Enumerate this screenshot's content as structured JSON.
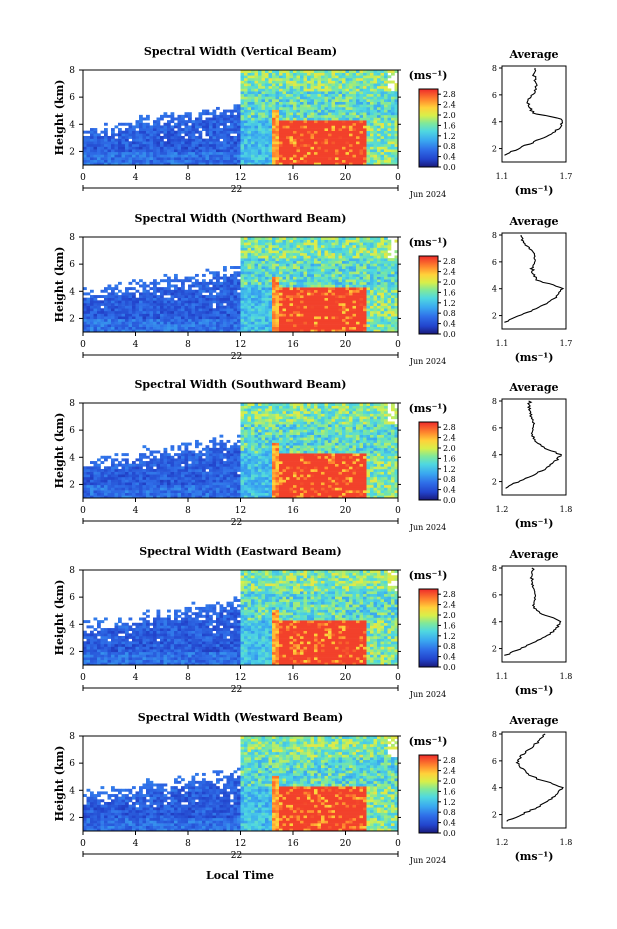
{
  "figure": {
    "xlabel": "Local Time",
    "date": "Jun 2024",
    "day": "22",
    "height_label": "Height (km)",
    "unit_label": "(ms⁻¹)",
    "avg_title": "Average"
  },
  "chart_data": [
    {
      "type": "heatmap",
      "title": "Spectral Width (Vertical Beam)",
      "x_ticks": [
        "0",
        "4",
        "8",
        "12",
        "16",
        "20",
        "0"
      ],
      "xlim": [
        0,
        24
      ],
      "y_ticks": [
        "2",
        "4",
        "6",
        "8"
      ],
      "ylim": [
        1,
        8
      ],
      "colorbar_ticks": [
        "0.0",
        "0.4",
        "0.8",
        "1.2",
        "1.6",
        "2.0",
        "2.4",
        "2.8"
      ],
      "colorbar_range": [
        0.0,
        3.0
      ],
      "avg_profile": {
        "x_ticks": [
          "1.1",
          "1.7"
        ],
        "xlim": [
          1.1,
          1.7
        ],
        "height": [
          1.5,
          2.0,
          2.5,
          3.0,
          3.5,
          4.0,
          4.3,
          4.6,
          5.0,
          5.5,
          6.0,
          6.5,
          7.0,
          7.5,
          8.0
        ],
        "value": [
          1.12,
          1.25,
          1.4,
          1.55,
          1.63,
          1.68,
          1.62,
          1.4,
          1.36,
          1.34,
          1.39,
          1.41,
          1.42,
          1.4,
          1.41
        ]
      }
    },
    {
      "type": "heatmap",
      "title": "Spectral Width (Northward Beam)",
      "x_ticks": [
        "0",
        "4",
        "8",
        "12",
        "16",
        "20",
        "0"
      ],
      "xlim": [
        0,
        24
      ],
      "y_ticks": [
        "2",
        "4",
        "6",
        "8"
      ],
      "ylim": [
        1,
        8
      ],
      "colorbar_ticks": [
        "0.0",
        "0.4",
        "0.8",
        "1.2",
        "1.6",
        "2.0",
        "2.4",
        "2.8"
      ],
      "colorbar_range": [
        0.0,
        3.0
      ],
      "avg_profile": {
        "x_ticks": [
          "1.1",
          "1.7"
        ],
        "xlim": [
          1.1,
          1.7
        ],
        "height": [
          1.5,
          2.0,
          2.5,
          3.0,
          3.5,
          4.0,
          4.3,
          4.6,
          5.0,
          5.5,
          6.0,
          6.5,
          7.0,
          7.5,
          8.0
        ],
        "value": [
          1.13,
          1.27,
          1.42,
          1.55,
          1.62,
          1.67,
          1.58,
          1.43,
          1.4,
          1.38,
          1.42,
          1.4,
          1.36,
          1.3,
          1.28
        ]
      }
    },
    {
      "type": "heatmap",
      "title": "Spectral Width (Southward Beam)",
      "x_ticks": [
        "0",
        "4",
        "8",
        "12",
        "16",
        "20",
        "0"
      ],
      "xlim": [
        0,
        24
      ],
      "y_ticks": [
        "2",
        "4",
        "6",
        "8"
      ],
      "ylim": [
        1,
        8
      ],
      "colorbar_ticks": [
        "0.0",
        "0.4",
        "0.8",
        "1.2",
        "1.6",
        "2.0",
        "2.4",
        "2.8"
      ],
      "colorbar_range": [
        0.0,
        3.0
      ],
      "avg_profile": {
        "x_ticks": [
          "1.2",
          "1.8"
        ],
        "xlim": [
          1.2,
          1.8
        ],
        "height": [
          1.5,
          2.0,
          2.5,
          3.0,
          3.5,
          4.0,
          4.3,
          4.6,
          5.0,
          5.5,
          6.0,
          6.5,
          7.0,
          7.5,
          8.0
        ],
        "value": [
          1.22,
          1.35,
          1.5,
          1.62,
          1.7,
          1.75,
          1.66,
          1.58,
          1.52,
          1.48,
          1.5,
          1.49,
          1.47,
          1.45,
          1.46
        ]
      }
    },
    {
      "type": "heatmap",
      "title": "Spectral Width (Eastward Beam)",
      "x_ticks": [
        "0",
        "4",
        "8",
        "12",
        "16",
        "20",
        "0"
      ],
      "xlim": [
        0,
        24
      ],
      "y_ticks": [
        "2",
        "4",
        "6",
        "8"
      ],
      "ylim": [
        1,
        8
      ],
      "colorbar_ticks": [
        "0.0",
        "0.4",
        "0.8",
        "1.2",
        "1.6",
        "2.0",
        "2.4",
        "2.8"
      ],
      "colorbar_range": [
        0.0,
        3.0
      ],
      "avg_profile": {
        "x_ticks": [
          "1.1",
          "1.8"
        ],
        "xlim": [
          1.1,
          1.8
        ],
        "height": [
          1.5,
          2.0,
          2.5,
          3.0,
          3.5,
          4.0,
          4.3,
          4.6,
          5.0,
          5.5,
          6.0,
          6.5,
          7.0,
          7.5,
          8.0
        ],
        "value": [
          1.14,
          1.3,
          1.46,
          1.6,
          1.7,
          1.74,
          1.65,
          1.52,
          1.46,
          1.44,
          1.47,
          1.45,
          1.43,
          1.42,
          1.44
        ]
      }
    },
    {
      "type": "heatmap",
      "title": "Spectral Width (Westward Beam)",
      "x_ticks": [
        "0",
        "4",
        "8",
        "12",
        "16",
        "20",
        "0"
      ],
      "xlim": [
        0,
        24
      ],
      "y_ticks": [
        "2",
        "4",
        "6",
        "8"
      ],
      "ylim": [
        1,
        8
      ],
      "colorbar_ticks": [
        "0.0",
        "0.4",
        "0.8",
        "1.2",
        "1.6",
        "2.0",
        "2.4",
        "2.8"
      ],
      "colorbar_range": [
        0.0,
        3.0
      ],
      "avg_profile": {
        "x_ticks": [
          "1.2",
          "1.8"
        ],
        "xlim": [
          1.2,
          1.8
        ],
        "height": [
          1.5,
          2.0,
          2.5,
          3.0,
          3.5,
          4.0,
          4.3,
          4.6,
          5.0,
          5.5,
          6.0,
          6.5,
          7.0,
          7.5,
          8.0
        ],
        "value": [
          1.24,
          1.38,
          1.52,
          1.63,
          1.72,
          1.76,
          1.68,
          1.55,
          1.45,
          1.38,
          1.34,
          1.4,
          1.48,
          1.55,
          1.6
        ]
      }
    }
  ]
}
